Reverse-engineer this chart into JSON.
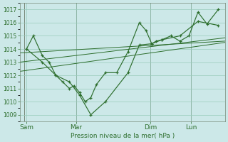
{
  "bg_color": "#cce8e8",
  "grid_color": "#99ccbb",
  "line_color": "#2d6e2d",
  "xlabel": "Pression niveau de la mer( hPa )",
  "ylim": [
    1008.5,
    1017.5
  ],
  "yticks": [
    1009,
    1010,
    1011,
    1012,
    1013,
    1014,
    1015,
    1016,
    1017
  ],
  "xlim": [
    -0.3,
    8.8
  ],
  "xtick_positions": [
    0.0,
    2.2,
    5.5,
    7.3
  ],
  "xtick_labels": [
    "Sam",
    "Mar",
    "Dim",
    "Lun"
  ],
  "vline_positions": [
    -0.1,
    2.2,
    5.5,
    7.3
  ],
  "series_a_x": [
    0.0,
    0.3,
    0.7,
    1.0,
    1.3,
    1.6,
    1.9,
    2.1,
    2.35,
    2.6,
    2.85,
    3.1,
    3.5,
    4.0,
    4.5,
    5.0,
    5.3,
    5.55,
    5.75,
    6.0,
    6.4,
    6.8,
    7.2,
    7.6,
    8.0,
    8.5
  ],
  "series_a_y": [
    1014.0,
    1015.0,
    1013.5,
    1013.0,
    1012.0,
    1011.5,
    1011.0,
    1011.2,
    1010.7,
    1010.0,
    1010.3,
    1011.3,
    1012.2,
    1012.2,
    1013.8,
    1016.0,
    1015.4,
    1014.4,
    1014.6,
    1014.7,
    1015.0,
    1014.6,
    1015.0,
    1016.8,
    1015.9,
    1017.0
  ],
  "series_b_x": [
    0.0,
    0.7,
    1.3,
    1.9,
    2.35,
    2.85,
    3.5,
    4.5,
    5.0,
    5.55,
    6.0,
    6.8,
    7.6,
    8.5
  ],
  "series_b_y": [
    1014.0,
    1013.0,
    1012.0,
    1011.5,
    1010.5,
    1009.0,
    1010.0,
    1012.2,
    1014.3,
    1014.4,
    1014.7,
    1015.0,
    1016.1,
    1015.8
  ],
  "trend_lines": [
    {
      "x": [
        -0.3,
        8.8
      ],
      "y": [
        1013.7,
        1014.6
      ]
    },
    {
      "x": [
        -0.3,
        8.8
      ],
      "y": [
        1012.3,
        1014.5
      ]
    },
    {
      "x": [
        -0.3,
        8.8
      ],
      "y": [
        1013.0,
        1014.85
      ]
    }
  ]
}
